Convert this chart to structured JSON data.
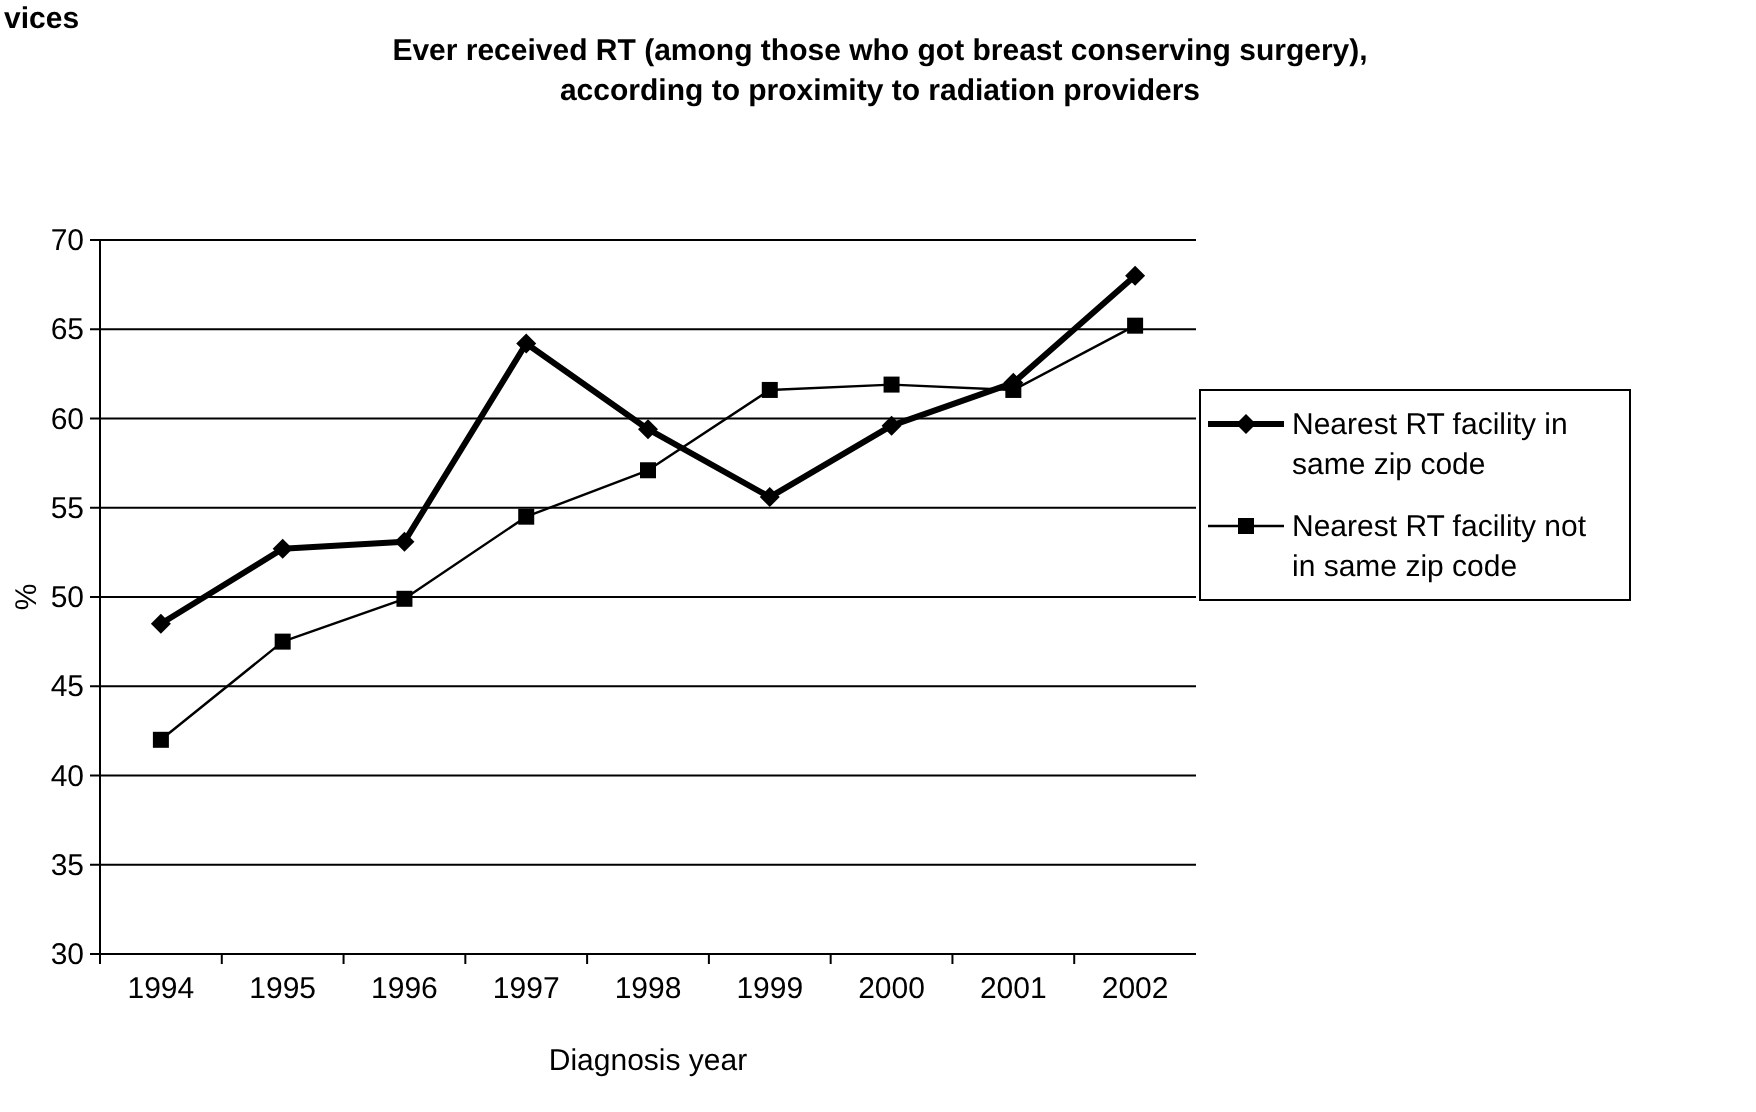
{
  "chart_data": {
    "type": "line",
    "title": "Ever received RT (among those who got breast conserving surgery), according to proximity to radiation providers",
    "xlabel": "Diagnosis year",
    "ylabel": "%",
    "annotations": [
      "vices"
    ],
    "categories": [
      "1994",
      "1995",
      "1996",
      "1997",
      "1998",
      "1999",
      "2000",
      "2001",
      "2002"
    ],
    "series": [
      {
        "name": "Nearest RT facility in same zip code",
        "color": "#000000",
        "marker": "diamond",
        "values": [
          48.5,
          52.7,
          53.1,
          64.2,
          59.4,
          55.6,
          59.6,
          62.0,
          68.0
        ]
      },
      {
        "name": "Nearest RT facility not in same zip code",
        "color": "#000000",
        "marker": "square",
        "values": [
          42.0,
          47.5,
          49.9,
          54.5,
          57.1,
          61.6,
          61.9,
          61.6,
          65.2
        ]
      }
    ],
    "ylim": [
      30,
      70
    ],
    "yticks": [
      30,
      35,
      40,
      45,
      50,
      55,
      60,
      65,
      70
    ],
    "grid": "y",
    "legend": "right"
  }
}
